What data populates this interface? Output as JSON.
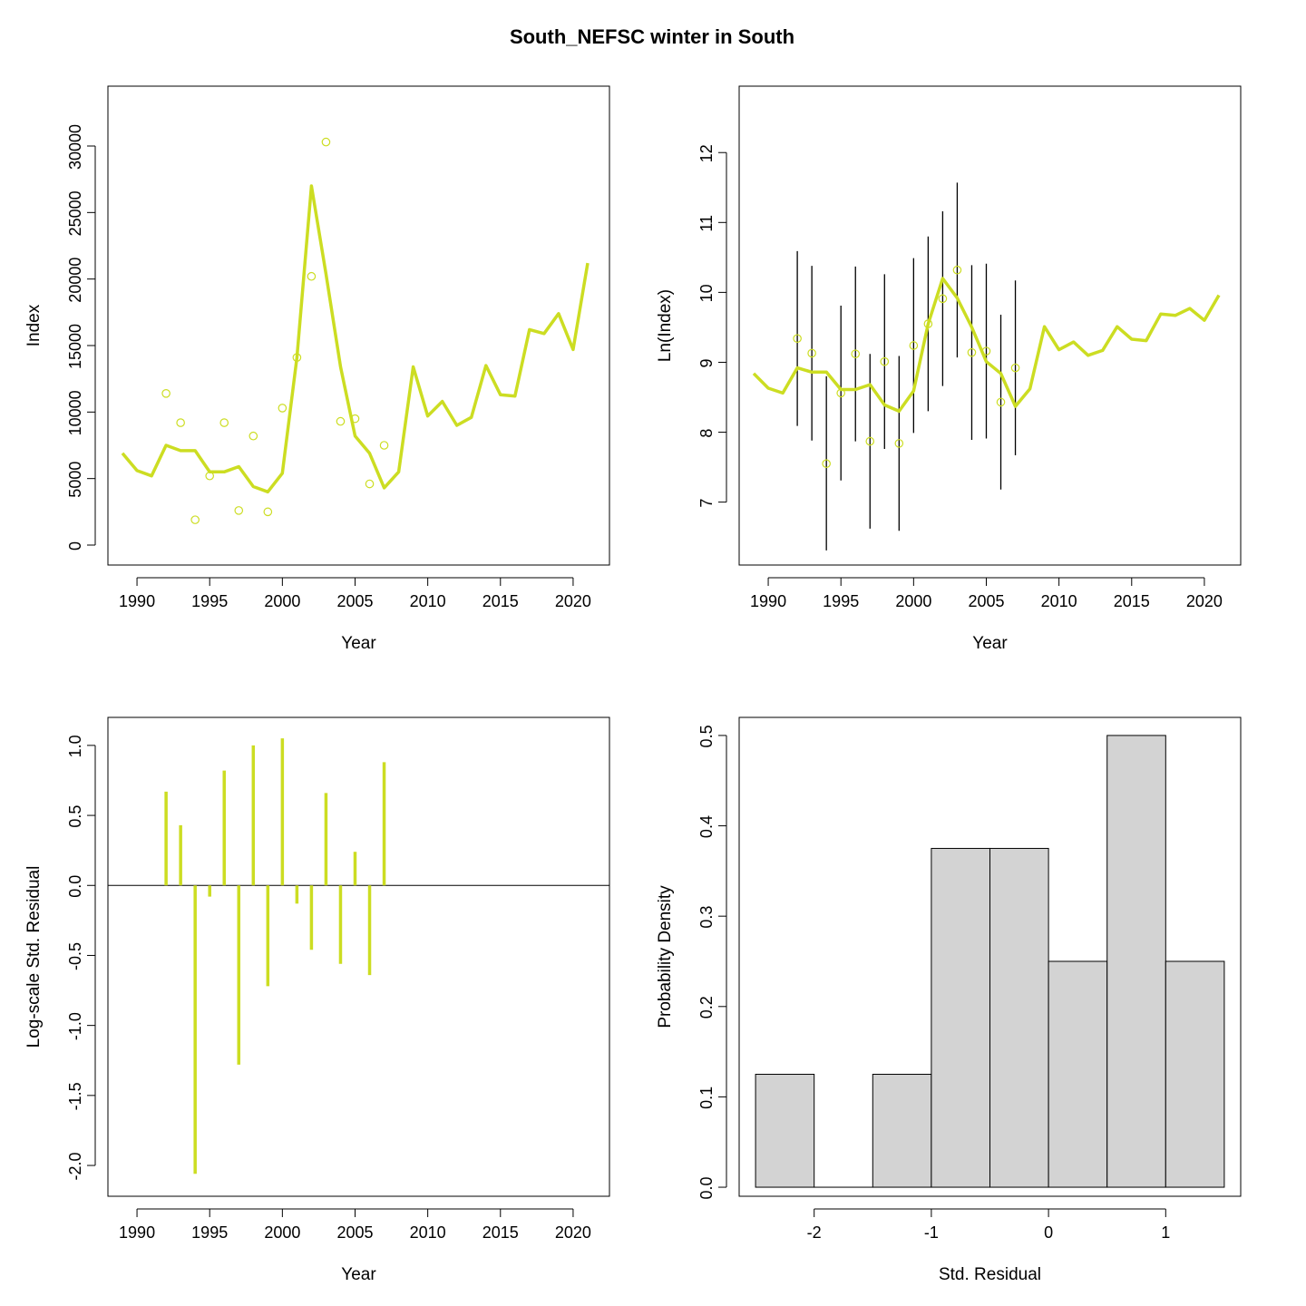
{
  "title": "South_NEFSC winter in South",
  "colors": {
    "series": "#CCDD22",
    "axis": "#000000",
    "bar_fill": "#D3D3D3"
  },
  "chart_data": [
    {
      "panel": "index",
      "type": "line",
      "xlabel": "Year",
      "ylabel": "Index",
      "xlim": [
        1988,
        2022.5
      ],
      "ylim": [
        -1500,
        34500
      ],
      "x_ticks": [
        1990,
        1995,
        2000,
        2005,
        2010,
        2015,
        2020
      ],
      "y_ticks": [
        0,
        5000,
        10000,
        15000,
        20000,
        25000,
        30000
      ],
      "predicted": {
        "x": [
          1989,
          1990,
          1991,
          1992,
          1993,
          1994,
          1995,
          1996,
          1997,
          1998,
          1999,
          2000,
          2001,
          2002,
          2003,
          2004,
          2005,
          2006,
          2007,
          2008,
          2009,
          2010,
          2011,
          2012,
          2013,
          2014,
          2015,
          2016,
          2017,
          2018,
          2019,
          2020,
          2021
        ],
        "y": [
          6900,
          5600,
          5200,
          7500,
          7100,
          7100,
          5500,
          5500,
          5900,
          4400,
          4000,
          5400,
          14100,
          27000,
          20400,
          13400,
          8200,
          6900,
          4300,
          5500,
          13400,
          9700,
          10800,
          9000,
          9600,
          13500,
          11300,
          11200,
          16200,
          15900,
          17400,
          14700,
          21200
        ]
      },
      "observed": {
        "x": [
          1992,
          1993,
          1994,
          1995,
          1996,
          1997,
          1998,
          1999,
          2000,
          2001,
          2002,
          2003,
          2004,
          2005,
          2006,
          2007
        ],
        "y": [
          11400,
          9200,
          1900,
          5200,
          9200,
          2600,
          8200,
          2500,
          10300,
          14100,
          20200,
          30300,
          9300,
          9500,
          4600,
          7500
        ]
      }
    },
    {
      "panel": "ln_index",
      "type": "line",
      "xlabel": "Year",
      "ylabel": "Ln(Index)",
      "xlim": [
        1988,
        2022.5
      ],
      "ylim": [
        6.1,
        12.95
      ],
      "x_ticks": [
        1990,
        1995,
        2000,
        2005,
        2010,
        2015,
        2020
      ],
      "y_ticks": [
        7,
        8,
        9,
        10,
        11,
        12
      ],
      "predicted": {
        "x": [
          1989,
          1990,
          1991,
          1992,
          1993,
          1994,
          1995,
          1996,
          1997,
          1998,
          1999,
          2000,
          2001,
          2002,
          2003,
          2004,
          2005,
          2006,
          2007,
          2008,
          2009,
          2010,
          2011,
          2012,
          2013,
          2014,
          2015,
          2016,
          2017,
          2018,
          2019,
          2020,
          2021
        ],
        "y": [
          8.84,
          8.63,
          8.56,
          8.92,
          8.86,
          8.86,
          8.61,
          8.61,
          8.68,
          8.39,
          8.3,
          8.59,
          9.55,
          10.2,
          9.92,
          9.5,
          9.01,
          8.84,
          8.37,
          8.62,
          9.51,
          9.18,
          9.29,
          9.1,
          9.17,
          9.51,
          9.33,
          9.31,
          9.69,
          9.67,
          9.77,
          9.6,
          9.96
        ]
      },
      "observed": {
        "x": [
          1992,
          1993,
          1994,
          1995,
          1996,
          1997,
          1998,
          1999,
          2000,
          2001,
          2002,
          2003,
          2004,
          2005,
          2006,
          2007
        ],
        "y": [
          9.34,
          9.13,
          7.55,
          8.56,
          9.12,
          7.87,
          9.01,
          7.84,
          9.24,
          9.55,
          9.91,
          10.32,
          9.14,
          9.16,
          8.43,
          8.92
        ]
      },
      "intervals": {
        "x": [
          1992,
          1993,
          1994,
          1995,
          1996,
          1997,
          1998,
          1999,
          2000,
          2001,
          2002,
          2003,
          2004,
          2005,
          2006,
          2007
        ],
        "lower": [
          8.09,
          7.88,
          6.31,
          7.31,
          7.87,
          6.62,
          7.76,
          6.59,
          7.99,
          8.3,
          8.66,
          9.07,
          7.89,
          7.91,
          7.18,
          7.67
        ],
        "upper": [
          10.59,
          10.38,
          8.8,
          9.81,
          10.37,
          9.12,
          10.26,
          9.09,
          10.49,
          10.8,
          11.16,
          11.57,
          10.39,
          10.41,
          9.68,
          10.17
        ]
      }
    },
    {
      "panel": "residuals",
      "type": "bar",
      "xlabel": "Year",
      "ylabel": "Log-scale Std. Residual",
      "xlim": [
        1988,
        2022.5
      ],
      "ylim": [
        -2.22,
        1.2
      ],
      "x_ticks": [
        1990,
        1995,
        2000,
        2005,
        2010,
        2015,
        2020
      ],
      "y_ticks": [
        -2.0,
        -1.5,
        -1.0,
        -0.5,
        0.0,
        0.5,
        1.0
      ],
      "x": [
        1992,
        1993,
        1994,
        1995,
        1996,
        1997,
        1998,
        1999,
        2000,
        2001,
        2002,
        2003,
        2004,
        2005,
        2006,
        2007
      ],
      "values": [
        0.67,
        0.43,
        -2.06,
        -0.08,
        0.82,
        -1.28,
        1.0,
        -0.72,
        1.05,
        -0.13,
        -0.46,
        0.66,
        -0.56,
        0.24,
        -0.64,
        0.88
      ]
    },
    {
      "panel": "histogram",
      "type": "bar",
      "xlabel": "Std. Residual",
      "ylabel": "Probability Density",
      "xlim": [
        -2.64,
        1.64
      ],
      "ylim": [
        -0.01,
        0.52
      ],
      "x_ticks": [
        -2,
        -1,
        0,
        1
      ],
      "y_ticks": [
        0.0,
        0.1,
        0.2,
        0.3,
        0.4,
        0.5
      ],
      "bins": [
        -2.5,
        -2.0,
        -1.5,
        -1.0,
        -0.5,
        0.0,
        0.5,
        1.0,
        1.5
      ],
      "density": [
        0.125,
        0.0,
        0.125,
        0.375,
        0.375,
        0.25,
        0.5,
        0.25
      ]
    }
  ]
}
